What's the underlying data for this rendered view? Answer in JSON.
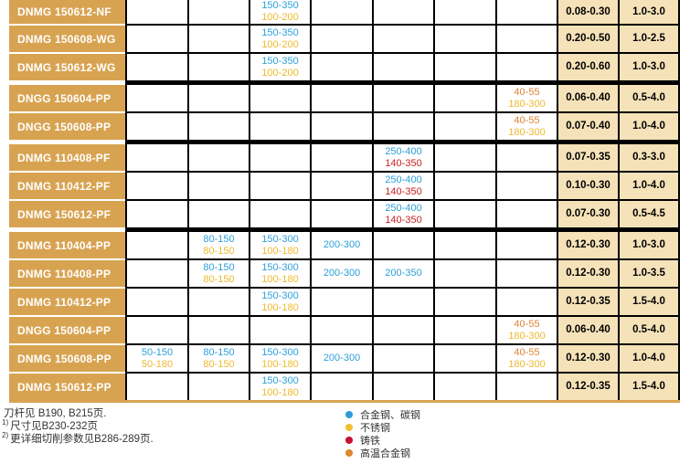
{
  "colors": {
    "blue": "#2EA0DA",
    "gold": "#EFB92E",
    "red": "#CB2026",
    "orange": "#DD8433",
    "label_bg": "#D8A351",
    "result_bg": "#F6E2B9",
    "grid_border": "#000000",
    "bottom_rule": "#D8A351"
  },
  "table": {
    "rows": [
      {
        "label": "DNMG 150612-NF",
        "clipped": true,
        "thick_after": false,
        "cells": {
          "c": [
            {
              "t": "150-350",
              "c": "blue"
            },
            {
              "t": "100-200",
              "c": "gold"
            }
          ]
        },
        "feed": "0.08-0.30",
        "depth": "1.0-3.0"
      },
      {
        "label": "DNMG 150608-WG",
        "clipped": false,
        "thick_after": false,
        "cells": {
          "c": [
            {
              "t": "150-350",
              "c": "blue"
            },
            {
              "t": "100-200",
              "c": "gold"
            }
          ]
        },
        "feed": "0.20-0.50",
        "depth": "1.0-2.5"
      },
      {
        "label": "DNMG 150612-WG",
        "clipped": false,
        "thick_after": true,
        "cells": {
          "c": [
            {
              "t": "150-350",
              "c": "blue"
            },
            {
              "t": "100-200",
              "c": "gold"
            }
          ]
        },
        "feed": "0.20-0.60",
        "depth": "1.0-3.0"
      },
      {
        "label": "DNGG 150604-PP",
        "clipped": false,
        "thick_after": false,
        "cells": {
          "g": [
            {
              "t": "40-55",
              "c": "orange"
            },
            {
              "t": "180-300",
              "c": "gold"
            }
          ]
        },
        "feed": "0.06-0.40",
        "depth": "0.5-4.0"
      },
      {
        "label": "DNGG 150608-PP",
        "clipped": false,
        "thick_after": true,
        "cells": {
          "g": [
            {
              "t": "40-55",
              "c": "orange"
            },
            {
              "t": "180-300",
              "c": "gold"
            }
          ]
        },
        "feed": "0.07-0.40",
        "depth": "1.0-4.0"
      },
      {
        "label": "DNMG 110408-PF",
        "clipped": false,
        "thick_after": false,
        "cells": {
          "e": [
            {
              "t": "250-400",
              "c": "blue"
            },
            {
              "t": "140-350",
              "c": "red"
            }
          ]
        },
        "feed": "0.07-0.35",
        "depth": "0.3-3.0"
      },
      {
        "label": "DNMG 110412-PF",
        "clipped": false,
        "thick_after": false,
        "cells": {
          "e": [
            {
              "t": "250-400",
              "c": "blue"
            },
            {
              "t": "140-350",
              "c": "red"
            }
          ]
        },
        "feed": "0.10-0.30",
        "depth": "1.0-4.0"
      },
      {
        "label": "DNMG 150612-PF",
        "clipped": false,
        "thick_after": true,
        "cells": {
          "e": [
            {
              "t": "250-400",
              "c": "blue"
            },
            {
              "t": "140-350",
              "c": "red"
            }
          ]
        },
        "feed": "0.07-0.30",
        "depth": "0.5-4.5"
      },
      {
        "label": "DNMG 110404-PP",
        "clipped": false,
        "thick_after": false,
        "cells": {
          "b": [
            {
              "t": "80-150",
              "c": "blue"
            },
            {
              "t": "80-150",
              "c": "gold"
            }
          ],
          "c": [
            {
              "t": "150-300",
              "c": "blue"
            },
            {
              "t": "100-180",
              "c": "gold"
            }
          ],
          "d": [
            {
              "t": "200-300",
              "c": "blue"
            }
          ]
        },
        "feed": "0.12-0.30",
        "depth": "1.0-3.0"
      },
      {
        "label": "DNMG 110408-PP",
        "clipped": false,
        "thick_after": false,
        "cells": {
          "b": [
            {
              "t": "80-150",
              "c": "blue"
            },
            {
              "t": "80-150",
              "c": "gold"
            }
          ],
          "c": [
            {
              "t": "150-300",
              "c": "blue"
            },
            {
              "t": "100-180",
              "c": "gold"
            }
          ],
          "d": [
            {
              "t": "200-300",
              "c": "blue"
            }
          ],
          "e": [
            {
              "t": "200-350",
              "c": "blue"
            }
          ]
        },
        "feed": "0.12-0.30",
        "depth": "1.0-3.5"
      },
      {
        "label": "DNMG 110412-PP",
        "clipped": false,
        "thick_after": false,
        "cells": {
          "c": [
            {
              "t": "150-300",
              "c": "blue"
            },
            {
              "t": "100-180",
              "c": "gold"
            }
          ]
        },
        "feed": "0.12-0.35",
        "depth": "1.5-4.0"
      },
      {
        "label": "DNGG 150604-PP",
        "clipped": false,
        "thick_after": false,
        "cells": {
          "g": [
            {
              "t": "40-55",
              "c": "orange"
            },
            {
              "t": "180-300",
              "c": "gold"
            }
          ]
        },
        "feed": "0.06-0.40",
        "depth": "0.5-4.0"
      },
      {
        "label": "DNMG 150608-PP",
        "clipped": false,
        "thick_after": false,
        "cells": {
          "a": [
            {
              "t": "50-150",
              "c": "blue"
            },
            {
              "t": "50-180",
              "c": "gold"
            }
          ],
          "b": [
            {
              "t": "80-150",
              "c": "blue"
            },
            {
              "t": "80-150",
              "c": "gold"
            }
          ],
          "c": [
            {
              "t": "150-300",
              "c": "blue"
            },
            {
              "t": "100-180",
              "c": "gold"
            }
          ],
          "d": [
            {
              "t": "200-300",
              "c": "blue"
            }
          ],
          "g": [
            {
              "t": "40-55",
              "c": "orange"
            },
            {
              "t": "180-300",
              "c": "gold"
            }
          ]
        },
        "feed": "0.12-0.30",
        "depth": "1.0-4.0"
      },
      {
        "label": "DNMG 150612-PP",
        "clipped": false,
        "thick_after": false,
        "cells": {
          "c": [
            {
              "t": "150-300",
              "c": "blue"
            },
            {
              "t": "100-180",
              "c": "gold"
            }
          ]
        },
        "feed": "0.12-0.35",
        "depth": "1.5-4.0"
      }
    ]
  },
  "footnotes": [
    {
      "sup": "",
      "text": "刀杆见 B190, B215页."
    },
    {
      "sup": "1)",
      "text": "尺寸见B230-232页"
    },
    {
      "sup": "2)",
      "text": "更详细切削参数见B286-289页."
    }
  ],
  "legend": [
    {
      "color": "#2E9BD8",
      "label": "合金钢、碳钢"
    },
    {
      "color": "#EFC12E",
      "label": "不锈钢"
    },
    {
      "color": "#C6112E",
      "label": "铸铁"
    },
    {
      "color": "#DD862C",
      "label": "高温合金钢"
    }
  ]
}
